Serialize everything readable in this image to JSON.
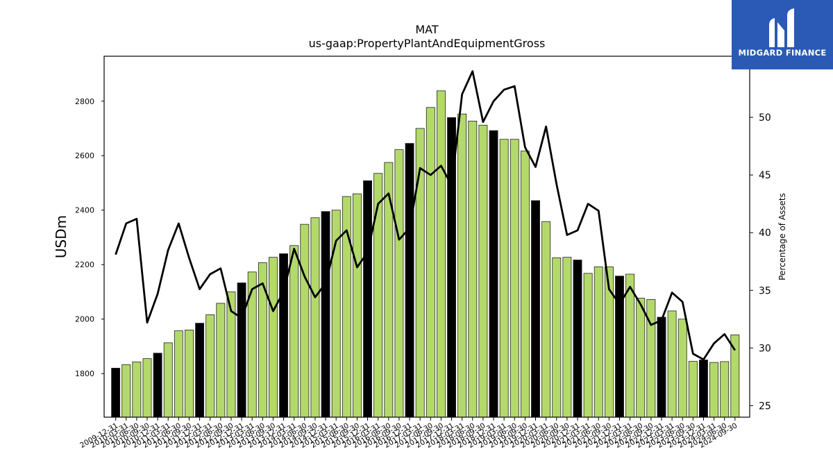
{
  "chart_data": {
    "type": "bar",
    "title": "MAT",
    "subtitle": "us-gaap:PropertyPlantAndEquipmentGross",
    "ylabel": "USDm",
    "y2label": "Percentage of Assets",
    "ylim": [
      1640,
      2965
    ],
    "y2lim": [
      24,
      55.3
    ],
    "yticks": [
      1800,
      2000,
      2200,
      2400,
      2600,
      2800
    ],
    "y2ticks": [
      25,
      30,
      35,
      40,
      45,
      50
    ],
    "categories": [
      "2009-12-31",
      "2010-03-31",
      "2010-06-30",
      "2010-09-30",
      "2010-12-31",
      "2011-03-31",
      "2011-06-30",
      "2011-09-30",
      "2011-12-31",
      "2012-03-31",
      "2012-06-30",
      "2012-09-30",
      "2012-12-31",
      "2013-03-31",
      "2013-06-30",
      "2013-09-30",
      "2013-12-31",
      "2014-03-31",
      "2014-06-30",
      "2014-09-30",
      "2014-12-31",
      "2015-03-31",
      "2015-06-30",
      "2015-09-30",
      "2015-12-31",
      "2016-03-31",
      "2016-06-30",
      "2016-09-30",
      "2016-12-31",
      "2017-03-31",
      "2017-06-30",
      "2017-09-30",
      "2017-12-31",
      "2018-03-31",
      "2018-06-30",
      "2018-09-30",
      "2018-12-31",
      "2019-03-31",
      "2019-06-30",
      "2019-09-30",
      "2019-12-31",
      "2020-03-31",
      "2020-06-30",
      "2020-09-30",
      "2020-12-31",
      "2021-03-31",
      "2021-06-30",
      "2021-09-30",
      "2021-12-31",
      "2022-03-31",
      "2022-06-30",
      "2022-09-30",
      "2022-12-31",
      "2023-03-31",
      "2023-06-30",
      "2023-09-30",
      "2023-12-31",
      "2024-03-31",
      "2024-06-30",
      "2024-09-30"
    ],
    "series": [
      {
        "kind": "bar",
        "axis": "left",
        "values": [
          1820,
          1833,
          1843,
          1855,
          1875,
          1913,
          1957,
          1960,
          1985,
          2016,
          2058,
          2100,
          2133,
          2173,
          2207,
          2227,
          2240,
          2270,
          2348,
          2372,
          2395,
          2400,
          2450,
          2460,
          2508,
          2535,
          2575,
          2622,
          2645,
          2700,
          2777,
          2838,
          2740,
          2753,
          2727,
          2712,
          2692,
          2660,
          2660,
          2617,
          2435,
          2358,
          2225,
          2227,
          2217,
          2168,
          2192,
          2192,
          2158,
          2165,
          2077,
          2072,
          2007,
          2030,
          2000,
          1845,
          1850,
          1841,
          1844,
          1942
        ],
        "highlight_color": "#000000",
        "highlight_every": 4,
        "fill": "#b3d96b",
        "edge": "#222222"
      },
      {
        "kind": "line",
        "axis": "right",
        "color": "#000000",
        "values": [
          38.1,
          40.8,
          41.2,
          32.2,
          34.7,
          38.5,
          40.8,
          37.8,
          35.1,
          36.4,
          36.9,
          33.2,
          32.6,
          35.1,
          35.6,
          33.2,
          34.9,
          38.6,
          36.2,
          34.4,
          35.6,
          39.3,
          40.2,
          37.0,
          38.3,
          42.5,
          43.4,
          39.4,
          40.4,
          45.6,
          45.0,
          45.8,
          44.1,
          52.0,
          54.0,
          49.6,
          51.4,
          52.4,
          52.7,
          47.4,
          45.7,
          49.2,
          44.2,
          39.8,
          40.2,
          42.5,
          41.9,
          35.1,
          33.8,
          35.3,
          33.8,
          32.0,
          32.4,
          34.8,
          34.0,
          29.5,
          29.0,
          30.4,
          31.2,
          29.8
        ]
      }
    ],
    "grid": false,
    "legend": "none"
  },
  "logo": {
    "text": "MIDGARD FINANCE",
    "color": "#2a5ab5"
  }
}
